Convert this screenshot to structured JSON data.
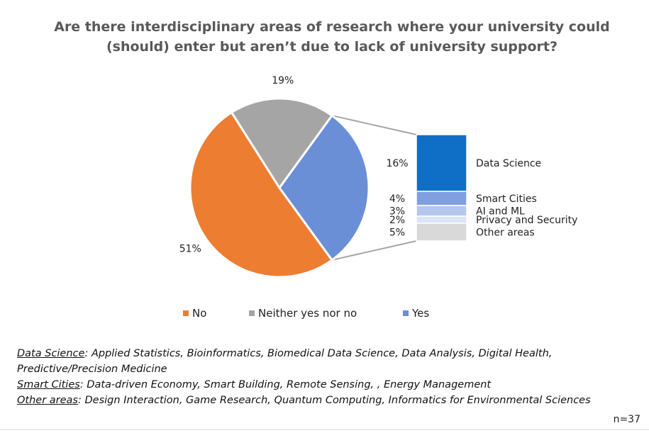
{
  "chart_data": {
    "type": "pie",
    "title": "Are there interdisciplinary areas of research where your university could (should) enter but aren’t due to lack of university support?",
    "title_lines": [
      "Are there interdisciplinary areas of research where your university could",
      "(should) enter but aren’t due to lack of university support?"
    ],
    "slices": [
      {
        "name": "No",
        "value": 51,
        "label": "51%",
        "color": "#ED7D31"
      },
      {
        "name": "Neither yes nor no",
        "value": 19,
        "label": "19%",
        "color": "#A5A5A5"
      },
      {
        "name": "Yes",
        "value": 30,
        "label": "",
        "color": "#6A8FD6"
      }
    ],
    "breakdown_of": "Yes",
    "breakdown": [
      {
        "name": "Data Science",
        "value": 16,
        "label": "16%",
        "color": "#0F6FC6"
      },
      {
        "name": "Smart Cities",
        "value": 4,
        "label": "4%",
        "color": "#7F9FE0"
      },
      {
        "name": "AI and ML",
        "value": 3,
        "label": "3%",
        "color": "#B4C7EC"
      },
      {
        "name": "Privacy and Security",
        "value": 2,
        "label": "2%",
        "color": "#DCE5F6"
      },
      {
        "name": "Other areas",
        "value": 5,
        "label": "5%",
        "color": "#D9D9D9"
      }
    ],
    "legend": [
      "No",
      "Neither yes nor no",
      "Yes"
    ],
    "legend_position": "bottom"
  },
  "footnotes": [
    {
      "term": "Data Science",
      "text": ": Applied Statistics, Bioinformatics, Biomedical Data Science, Data Analysis, Digital Health, Predictive/Precision Medicine"
    },
    {
      "term": "Smart Cities",
      "text": ": Data-driven Economy, Smart Building, Remote Sensing, , Energy Management"
    },
    {
      "term": "Other areas",
      "text": ": Design Interaction, Game Research, Quantum Computing, Informatics for Environmental Sciences"
    }
  ],
  "sample_size": "n=37"
}
